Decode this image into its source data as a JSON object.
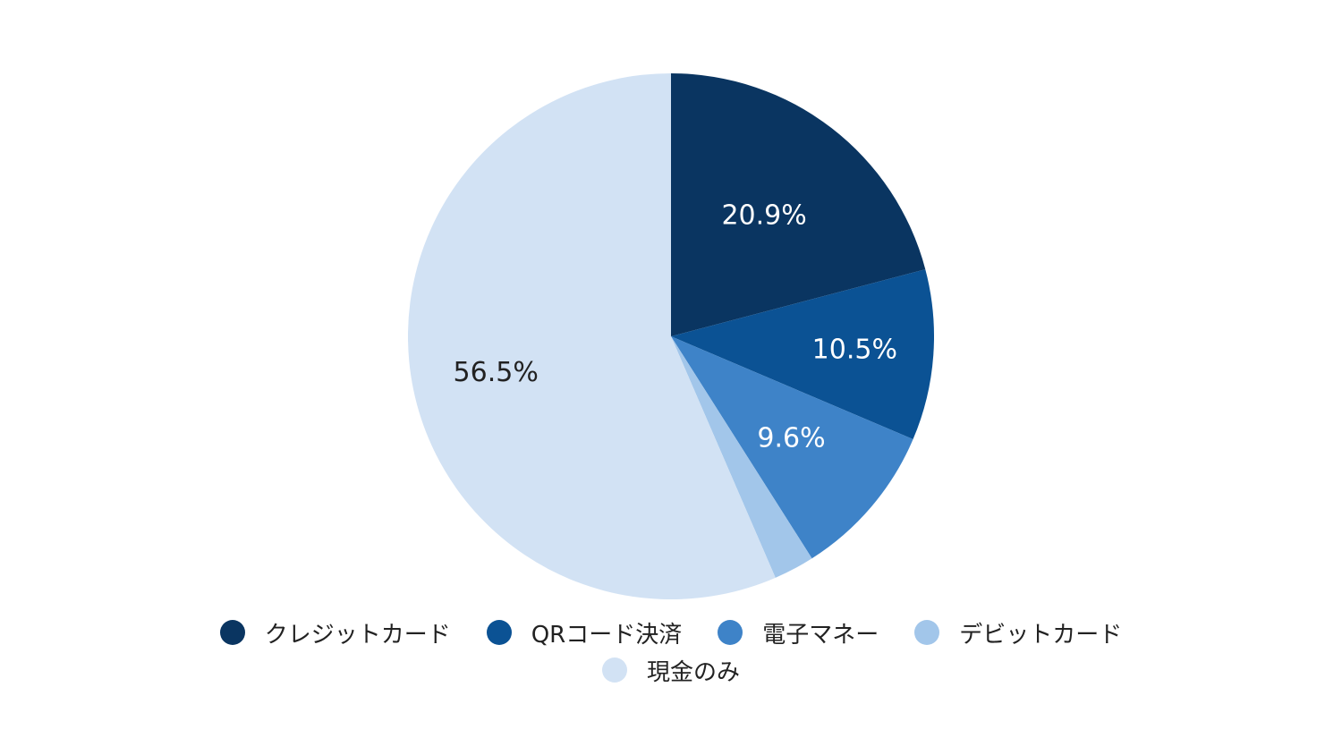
{
  "chart_data": {
    "type": "pie",
    "start_angle": "12 o'clock, clockwise",
    "legend_position": "bottom",
    "categories": [
      "クレジットカード",
      "QRコード決済",
      "電子マネー",
      "デビットカード",
      "現金のみ"
    ],
    "values": [
      20.9,
      10.5,
      9.6,
      2.5,
      56.5
    ],
    "data_labels": [
      "20.9%",
      "10.5%",
      "9.6%",
      "",
      "56.5%"
    ],
    "colors": [
      "#0a3561",
      "#0b5294",
      "#3e83c8",
      "#a2c6ea",
      "#d2e2f4"
    ],
    "label_colors": [
      "#ffffff",
      "#ffffff",
      "#ffffff",
      "#222222",
      "#222222"
    ]
  }
}
